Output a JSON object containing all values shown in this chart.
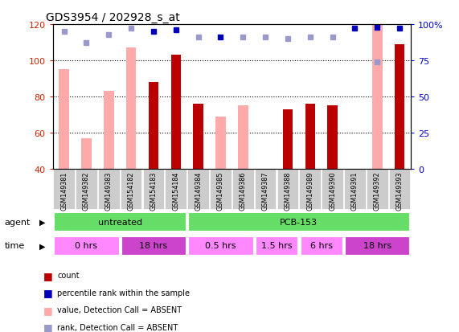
{
  "title": "GDS3954 / 202928_s_at",
  "samples": [
    "GSM149381",
    "GSM149382",
    "GSM149383",
    "GSM154182",
    "GSM154183",
    "GSM154184",
    "GSM149384",
    "GSM149385",
    "GSM149386",
    "GSM149387",
    "GSM149388",
    "GSM149389",
    "GSM149390",
    "GSM149391",
    "GSM149392",
    "GSM149393"
  ],
  "count_present": [
    null,
    null,
    null,
    null,
    88,
    103,
    76,
    null,
    null,
    null,
    73,
    76,
    75,
    null,
    null,
    109
  ],
  "count_absent": [
    95,
    57,
    83,
    107,
    null,
    null,
    null,
    69,
    75,
    null,
    null,
    null,
    null,
    null,
    120,
    null
  ],
  "rank_present": [
    null,
    null,
    null,
    null,
    95,
    96,
    null,
    91,
    null,
    null,
    null,
    null,
    null,
    97,
    98,
    97
  ],
  "rank_absent": [
    95,
    87,
    93,
    97,
    null,
    null,
    91,
    null,
    91,
    91,
    90,
    91,
    91,
    null,
    74,
    null
  ],
  "ylim_left": [
    40,
    120
  ],
  "ylim_right": [
    0,
    100
  ],
  "yticks_left": [
    40,
    60,
    80,
    100,
    120
  ],
  "yticks_right": [
    0,
    25,
    50,
    75,
    100
  ],
  "ytick_labels_right": [
    "0",
    "25",
    "50",
    "75",
    "100%"
  ],
  "agent_groups": [
    {
      "label": "untreated",
      "start": 0,
      "end": 6,
      "color": "#66dd66"
    },
    {
      "label": "PCB-153",
      "start": 6,
      "end": 16,
      "color": "#66dd66"
    }
  ],
  "time_groups": [
    {
      "label": "0 hrs",
      "start": 0,
      "end": 3,
      "color": "#ff88ff"
    },
    {
      "label": "18 hrs",
      "start": 3,
      "end": 6,
      "color": "#cc44cc"
    },
    {
      "label": "0.5 hrs",
      "start": 6,
      "end": 9,
      "color": "#ff88ff"
    },
    {
      "label": "1.5 hrs",
      "start": 9,
      "end": 11,
      "color": "#ff88ff"
    },
    {
      "label": "6 hrs",
      "start": 11,
      "end": 13,
      "color": "#ff88ff"
    },
    {
      "label": "18 hrs",
      "start": 13,
      "end": 16,
      "color": "#cc44cc"
    }
  ],
  "count_present_color": "#bb0000",
  "count_absent_color": "#ffaaaa",
  "rank_present_color": "#0000bb",
  "rank_absent_color": "#9999cc",
  "left_axis_color": "#cc2200",
  "right_axis_color": "#0000cc",
  "sample_box_color": "#cccccc",
  "bg_color": "#ffffff",
  "bar_width": 0.45
}
